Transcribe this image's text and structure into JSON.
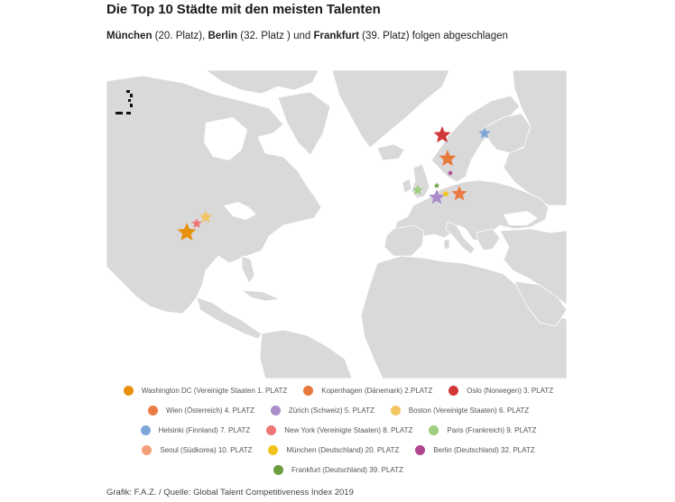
{
  "title": "Die Top 10 Städte mit den meisten Talenten",
  "subtitle": {
    "city1": "München",
    "rank1": " (20. Platz), ",
    "city2": "Berlin",
    "rank2": " (32. Platz ) und ",
    "city3": "Frankfurt",
    "rank3": " (39. Platz) folgen abgeschlagen"
  },
  "legend": [
    {
      "label": "Washington DC (Vereinigte Staaten 1. PLATZ",
      "color": "#e8900c"
    },
    {
      "label": "Kopenhagen (Dänemark) 2.PLATZ",
      "color": "#e8793c"
    },
    {
      "label": "Oslo (Norwegen) 3. PLATZ",
      "color": "#d0393a"
    },
    {
      "label": "Wien (Österreich) 4. PLATZ",
      "color": "#ec7a43"
    },
    {
      "label": "Zürich (Schweiz) 5. PLATZ",
      "color": "#a98cc9"
    },
    {
      "label": "Boston (Vereinigte Staaten) 6. PLATZ",
      "color": "#f2c462"
    },
    {
      "label": "Helsinki (Finnland) 7. PLATZ",
      "color": "#7fa6d9"
    },
    {
      "label": "New York (Vereinigte Staaten) 8. PLATZ",
      "color": "#ee7575"
    },
    {
      "label": "Paris (Frankreich) 9. PLATZ",
      "color": "#9dcd7f"
    },
    {
      "label": "Seoul (Südkorea) 10. PLATZ",
      "color": "#f3a079"
    },
    {
      "label": "München (Deutschland) 20. PLATZ",
      "color": "#f2c21c"
    },
    {
      "label": "Berlin (Deutschland) 32. PLATZ",
      "color": "#b0448f"
    },
    {
      "label": "Frankfurt (Deutschland) 39. PLATZ",
      "color": "#6a9e3f"
    }
  ],
  "source": "Grafik: F.A.Z. / Quelle: Global Talent Competitiveness Index 2019"
}
